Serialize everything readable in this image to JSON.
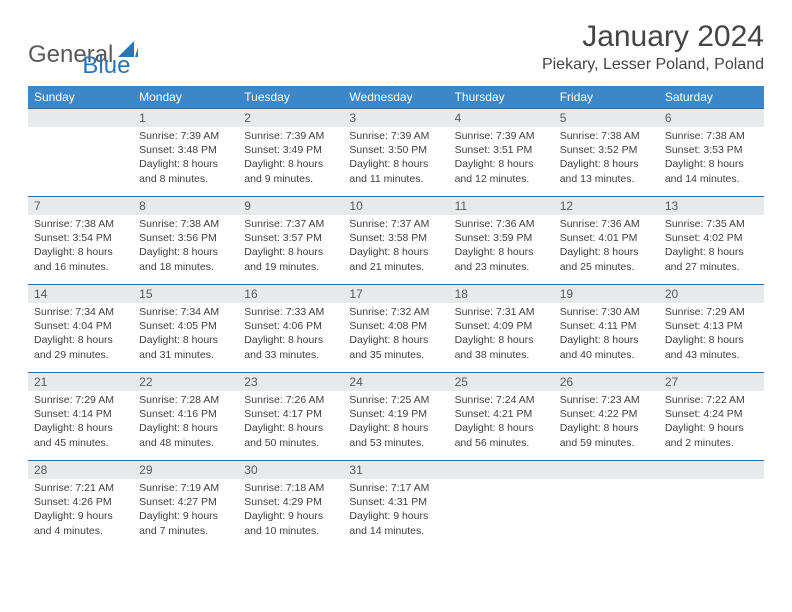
{
  "logo": {
    "general": "General",
    "blue": "Blue"
  },
  "title": "January 2024",
  "location": "Piekary, Lesser Poland, Poland",
  "colors": {
    "header_bg": "#3b87c7",
    "header_text": "#ffffff",
    "daynum_bg": "#e8e9ea",
    "row_border": "#2d6ea3",
    "body_text": "#3f3f3f",
    "logo_blue": "#2776b9",
    "logo_gray": "#5a5a5a"
  },
  "dayNames": [
    "Sunday",
    "Monday",
    "Tuesday",
    "Wednesday",
    "Thursday",
    "Friday",
    "Saturday"
  ],
  "weeks": [
    [
      null,
      {
        "n": "1",
        "sr": "Sunrise: 7:39 AM",
        "ss": "Sunset: 3:48 PM",
        "dl": "Daylight: 8 hours and 8 minutes."
      },
      {
        "n": "2",
        "sr": "Sunrise: 7:39 AM",
        "ss": "Sunset: 3:49 PM",
        "dl": "Daylight: 8 hours and 9 minutes."
      },
      {
        "n": "3",
        "sr": "Sunrise: 7:39 AM",
        "ss": "Sunset: 3:50 PM",
        "dl": "Daylight: 8 hours and 11 minutes."
      },
      {
        "n": "4",
        "sr": "Sunrise: 7:39 AM",
        "ss": "Sunset: 3:51 PM",
        "dl": "Daylight: 8 hours and 12 minutes."
      },
      {
        "n": "5",
        "sr": "Sunrise: 7:38 AM",
        "ss": "Sunset: 3:52 PM",
        "dl": "Daylight: 8 hours and 13 minutes."
      },
      {
        "n": "6",
        "sr": "Sunrise: 7:38 AM",
        "ss": "Sunset: 3:53 PM",
        "dl": "Daylight: 8 hours and 14 minutes."
      }
    ],
    [
      {
        "n": "7",
        "sr": "Sunrise: 7:38 AM",
        "ss": "Sunset: 3:54 PM",
        "dl": "Daylight: 8 hours and 16 minutes."
      },
      {
        "n": "8",
        "sr": "Sunrise: 7:38 AM",
        "ss": "Sunset: 3:56 PM",
        "dl": "Daylight: 8 hours and 18 minutes."
      },
      {
        "n": "9",
        "sr": "Sunrise: 7:37 AM",
        "ss": "Sunset: 3:57 PM",
        "dl": "Daylight: 8 hours and 19 minutes."
      },
      {
        "n": "10",
        "sr": "Sunrise: 7:37 AM",
        "ss": "Sunset: 3:58 PM",
        "dl": "Daylight: 8 hours and 21 minutes."
      },
      {
        "n": "11",
        "sr": "Sunrise: 7:36 AM",
        "ss": "Sunset: 3:59 PM",
        "dl": "Daylight: 8 hours and 23 minutes."
      },
      {
        "n": "12",
        "sr": "Sunrise: 7:36 AM",
        "ss": "Sunset: 4:01 PM",
        "dl": "Daylight: 8 hours and 25 minutes."
      },
      {
        "n": "13",
        "sr": "Sunrise: 7:35 AM",
        "ss": "Sunset: 4:02 PM",
        "dl": "Daylight: 8 hours and 27 minutes."
      }
    ],
    [
      {
        "n": "14",
        "sr": "Sunrise: 7:34 AM",
        "ss": "Sunset: 4:04 PM",
        "dl": "Daylight: 8 hours and 29 minutes."
      },
      {
        "n": "15",
        "sr": "Sunrise: 7:34 AM",
        "ss": "Sunset: 4:05 PM",
        "dl": "Daylight: 8 hours and 31 minutes."
      },
      {
        "n": "16",
        "sr": "Sunrise: 7:33 AM",
        "ss": "Sunset: 4:06 PM",
        "dl": "Daylight: 8 hours and 33 minutes."
      },
      {
        "n": "17",
        "sr": "Sunrise: 7:32 AM",
        "ss": "Sunset: 4:08 PM",
        "dl": "Daylight: 8 hours and 35 minutes."
      },
      {
        "n": "18",
        "sr": "Sunrise: 7:31 AM",
        "ss": "Sunset: 4:09 PM",
        "dl": "Daylight: 8 hours and 38 minutes."
      },
      {
        "n": "19",
        "sr": "Sunrise: 7:30 AM",
        "ss": "Sunset: 4:11 PM",
        "dl": "Daylight: 8 hours and 40 minutes."
      },
      {
        "n": "20",
        "sr": "Sunrise: 7:29 AM",
        "ss": "Sunset: 4:13 PM",
        "dl": "Daylight: 8 hours and 43 minutes."
      }
    ],
    [
      {
        "n": "21",
        "sr": "Sunrise: 7:29 AM",
        "ss": "Sunset: 4:14 PM",
        "dl": "Daylight: 8 hours and 45 minutes."
      },
      {
        "n": "22",
        "sr": "Sunrise: 7:28 AM",
        "ss": "Sunset: 4:16 PM",
        "dl": "Daylight: 8 hours and 48 minutes."
      },
      {
        "n": "23",
        "sr": "Sunrise: 7:26 AM",
        "ss": "Sunset: 4:17 PM",
        "dl": "Daylight: 8 hours and 50 minutes."
      },
      {
        "n": "24",
        "sr": "Sunrise: 7:25 AM",
        "ss": "Sunset: 4:19 PM",
        "dl": "Daylight: 8 hours and 53 minutes."
      },
      {
        "n": "25",
        "sr": "Sunrise: 7:24 AM",
        "ss": "Sunset: 4:21 PM",
        "dl": "Daylight: 8 hours and 56 minutes."
      },
      {
        "n": "26",
        "sr": "Sunrise: 7:23 AM",
        "ss": "Sunset: 4:22 PM",
        "dl": "Daylight: 8 hours and 59 minutes."
      },
      {
        "n": "27",
        "sr": "Sunrise: 7:22 AM",
        "ss": "Sunset: 4:24 PM",
        "dl": "Daylight: 9 hours and 2 minutes."
      }
    ],
    [
      {
        "n": "28",
        "sr": "Sunrise: 7:21 AM",
        "ss": "Sunset: 4:26 PM",
        "dl": "Daylight: 9 hours and 4 minutes."
      },
      {
        "n": "29",
        "sr": "Sunrise: 7:19 AM",
        "ss": "Sunset: 4:27 PM",
        "dl": "Daylight: 9 hours and 7 minutes."
      },
      {
        "n": "30",
        "sr": "Sunrise: 7:18 AM",
        "ss": "Sunset: 4:29 PM",
        "dl": "Daylight: 9 hours and 10 minutes."
      },
      {
        "n": "31",
        "sr": "Sunrise: 7:17 AM",
        "ss": "Sunset: 4:31 PM",
        "dl": "Daylight: 9 hours and 14 minutes."
      },
      null,
      null,
      null
    ]
  ]
}
